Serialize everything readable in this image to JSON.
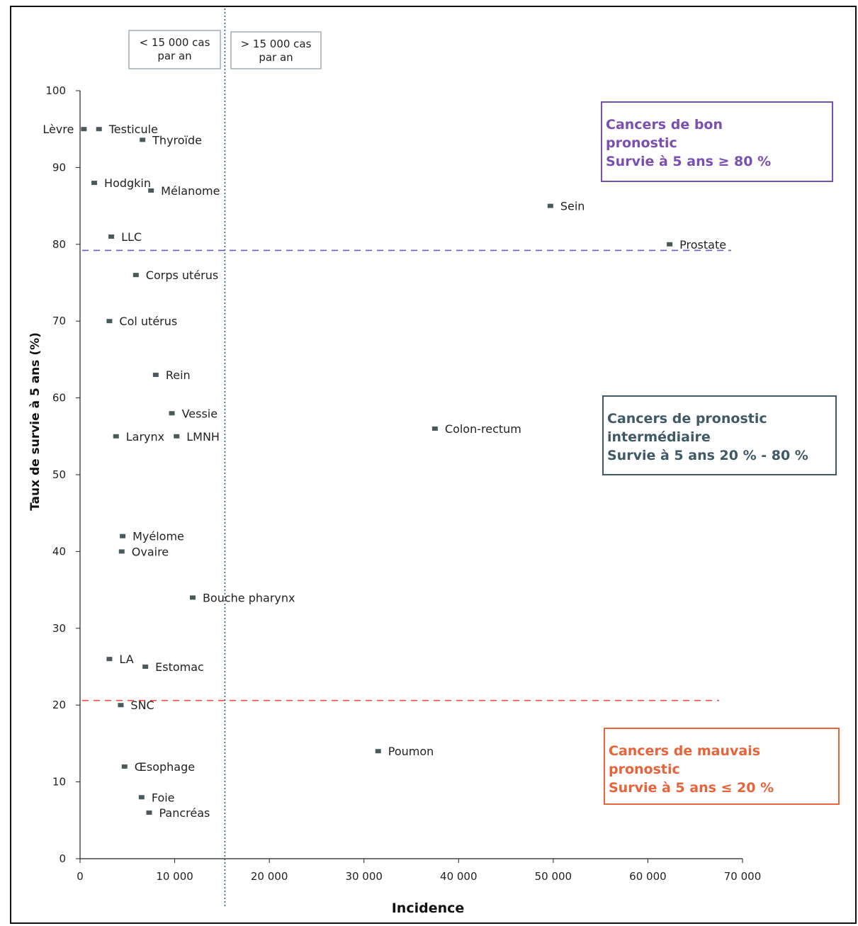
{
  "chart_data": {
    "type": "scatter",
    "xlabel": "Incidence",
    "ylabel": "Taux de survie à 5 ans (%)",
    "xlim": [
      0,
      70000
    ],
    "ylim": [
      0,
      100
    ],
    "x_ticks": [
      0,
      10000,
      20000,
      30000,
      40000,
      50000,
      60000,
      70000
    ],
    "x_tick_labels": [
      "0",
      "10 000",
      "20 000",
      "30 000",
      "40 000",
      "50 000",
      "60 000",
      "70 000"
    ],
    "y_ticks": [
      0,
      10,
      20,
      30,
      40,
      50,
      60,
      70,
      80,
      90,
      100
    ],
    "y_tick_labels": [
      "0",
      "10",
      "20",
      "30",
      "40",
      "50",
      "60",
      "70",
      "80",
      "90",
      "100"
    ],
    "grid": false,
    "marker_color": "#4a5a5c",
    "points": [
      {
        "label": "Lèvre",
        "x": 400,
        "y": 95,
        "label_side": "left"
      },
      {
        "label": "Testicule",
        "x": 2000,
        "y": 95
      },
      {
        "label": "Thyroïde",
        "x": 6600,
        "y": 93.6
      },
      {
        "label": "Hodgkin",
        "x": 1500,
        "y": 88
      },
      {
        "label": "Mélanome",
        "x": 7500,
        "y": 87
      },
      {
        "label": "Sein",
        "x": 49700,
        "y": 85
      },
      {
        "label": "LLC",
        "x": 3300,
        "y": 81
      },
      {
        "label": "Prostate",
        "x": 62300,
        "y": 80
      },
      {
        "label": "Corps utérus",
        "x": 5900,
        "y": 76
      },
      {
        "label": "Col utérus",
        "x": 3100,
        "y": 70
      },
      {
        "label": "Rein",
        "x": 8000,
        "y": 63
      },
      {
        "label": "Vessie",
        "x": 9700,
        "y": 58
      },
      {
        "label": "Colon-rectum",
        "x": 37500,
        "y": 56
      },
      {
        "label": "Larynx",
        "x": 3800,
        "y": 55
      },
      {
        "label": "LMNH",
        "x": 10200,
        "y": 55
      },
      {
        "label": "Myélome",
        "x": 4500,
        "y": 42
      },
      {
        "label": "Ovaire",
        "x": 4400,
        "y": 40
      },
      {
        "label": "Bouche pharynx",
        "x": 11900,
        "y": 34
      },
      {
        "label": "LA",
        "x": 3100,
        "y": 26
      },
      {
        "label": "Estomac",
        "x": 6900,
        "y": 25
      },
      {
        "label": "SNC",
        "x": 4300,
        "y": 20
      },
      {
        "label": "Poumon",
        "x": 31500,
        "y": 14
      },
      {
        "label": "Œsophage",
        "x": 4700,
        "y": 12
      },
      {
        "label": "Foie",
        "x": 6500,
        "y": 8
      },
      {
        "label": "Pancréas",
        "x": 7300,
        "y": 6
      }
    ],
    "reference_lines": [
      {
        "axis": "y",
        "value": 79.2,
        "color": "#6b5cb5",
        "style": "dashed"
      },
      {
        "axis": "y",
        "value": 20.6,
        "color": "#e8503a",
        "style": "dashed"
      },
      {
        "axis": "x",
        "value": 15300,
        "color": "#3b5f77",
        "style": "dotted"
      }
    ],
    "threshold_labels": [
      {
        "lines": [
          "< 15 000 cas",
          "par an"
        ]
      },
      {
        "lines": [
          "> 15 000 cas",
          "par an"
        ]
      }
    ],
    "annotations": [
      {
        "lines": [
          "Cancers de bon",
          "pronostic",
          "Survie à 5 ans ≥ 80 %"
        ],
        "color": "#7b4fb0"
      },
      {
        "lines": [
          "Cancers de pronostic",
          "intermédiaire",
          "Survie à 5 ans 20 % - 80 %"
        ],
        "color": "#3e5a66"
      },
      {
        "lines": [
          "Cancers de mauvais",
          "pronostic",
          "Survie à 5 ans ≤ 20 %"
        ],
        "color": "#e8623a"
      }
    ]
  }
}
